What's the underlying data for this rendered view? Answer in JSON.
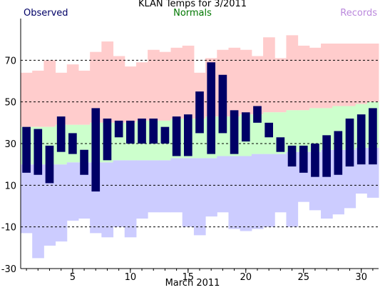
{
  "header": {
    "title": "KLAN Temps for 3/2011",
    "observed_label": "Observed",
    "normals_label": "Normals",
    "records_label": "Records"
  },
  "colors": {
    "observed": "#000066",
    "normals": "#ccffcc",
    "record_high": "#ffcccc",
    "record_low": "#ccccff",
    "observed_text": "#000066",
    "normals_text": "#007700",
    "records_text": "#bb88dd"
  },
  "chart_data": {
    "type": "bar",
    "title": "KLAN Temps for 3/2011",
    "xlabel": "March 2011",
    "ylabel": "",
    "ylim": [
      -30,
      90
    ],
    "xlim": [
      1,
      31
    ],
    "grid": true,
    "y_ticks": [
      -30,
      -10,
      10,
      30,
      50,
      70
    ],
    "y_gridlines": [
      -10,
      10,
      30,
      50,
      70
    ],
    "x_ticks": [
      5,
      10,
      15,
      20,
      25,
      30
    ],
    "days": [
      1,
      2,
      3,
      4,
      5,
      6,
      7,
      8,
      9,
      10,
      11,
      12,
      13,
      14,
      15,
      16,
      17,
      18,
      19,
      20,
      21,
      22,
      23,
      24,
      25,
      26,
      27,
      28,
      29,
      30,
      31
    ],
    "series": [
      {
        "name": "Observed",
        "high": [
          38,
          37,
          29,
          43,
          35,
          27,
          47,
          42,
          41,
          41,
          42,
          42,
          38,
          43,
          44,
          55,
          69,
          63,
          46,
          45,
          48,
          40,
          33,
          29,
          29,
          30,
          34,
          36,
          42,
          44,
          47
        ],
        "low": [
          16,
          15,
          11,
          26,
          25,
          15,
          7,
          22,
          33,
          30,
          30,
          30,
          30,
          24,
          24,
          35,
          25,
          35,
          25,
          31,
          40,
          33,
          26,
          19,
          16,
          14,
          14,
          15,
          19,
          20,
          20
        ]
      },
      {
        "name": "Normals",
        "high": [
          38,
          38,
          38,
          39,
          39,
          39,
          40,
          40,
          40,
          40,
          41,
          41,
          41,
          42,
          42,
          42,
          43,
          43,
          43,
          44,
          44,
          45,
          45,
          46,
          46,
          47,
          47,
          48,
          48,
          49,
          50
        ],
        "low": [
          20,
          20,
          20,
          20,
          21,
          21,
          21,
          21,
          22,
          22,
          22,
          22,
          22,
          23,
          23,
          23,
          23,
          24,
          24,
          24,
          25,
          25,
          25,
          26,
          26,
          26,
          27,
          27,
          27,
          28,
          28
        ]
      },
      {
        "name": "Records",
        "high": [
          64,
          65,
          70,
          64,
          68,
          65,
          74,
          79,
          72,
          67,
          69,
          75,
          74,
          76,
          77,
          64,
          71,
          75,
          76,
          75,
          72,
          81,
          71,
          82,
          77,
          76,
          78,
          78,
          78,
          78,
          78
        ],
        "low": [
          -13,
          -25,
          -19,
          -17,
          -7,
          -6,
          -13,
          -15,
          -10,
          -15,
          -6,
          -3,
          -3,
          -3,
          -10,
          -14,
          -5,
          -3,
          -11,
          -12,
          -11,
          -10,
          -3,
          -10,
          2,
          -2,
          -6,
          -4,
          -1,
          6,
          4
        ]
      }
    ]
  },
  "axis": {
    "x_label": "March 2011"
  }
}
